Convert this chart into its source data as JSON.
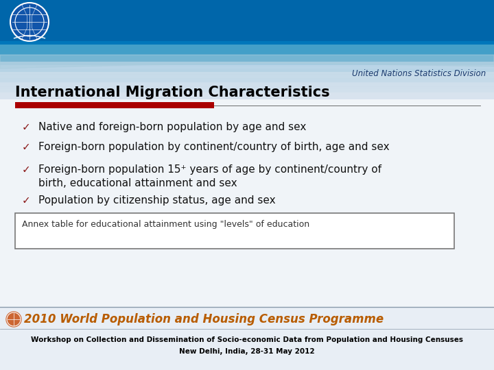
{
  "title": "International Migration Characteristics",
  "title_fontsize": 15,
  "title_color": "#000000",
  "red_bar_color": "#aa0000",
  "bullet_items": [
    "Native and foreign-born population by age and sex",
    "Foreign-born population by continent/country of birth, age and sex",
    "Foreign-born population 15⁺ years of age by continent/country of\nbirth, educational attainment and sex",
    "Population by citizenship status, age and sex"
  ],
  "bullet_color": "#8b1a1a",
  "bullet_fontsize": 11,
  "annex_text": "Annex table for educational attainment using \"levels\" of education",
  "annex_fontsize": 9,
  "annex_box_color": "#ffffff",
  "annex_border_color": "#777777",
  "footer_line1": "Workshop on Collection and Dissemination of Socio-economic Data from Population and Housing Censuses",
  "footer_line2": "New Delhi, India, 28-31 May 2012",
  "footer_fontsize": 7.5,
  "footer_color": "#000000",
  "un_text": "United Nations Statistics Division",
  "un_text_color": "#1a3a6e",
  "un_text_fontsize": 8.5,
  "programme_text": "2010 World Population and Housing Census Programme",
  "programme_fontsize": 12,
  "programme_color": "#b85c00",
  "header_dark_blue": "#0066aa",
  "header_mid_blue": "#4499cc",
  "header_light_blue": "#88ccee",
  "slide_bg": "#e8eef5",
  "content_bg": "#edf2f7",
  "stripe_color": "#d0dae4"
}
